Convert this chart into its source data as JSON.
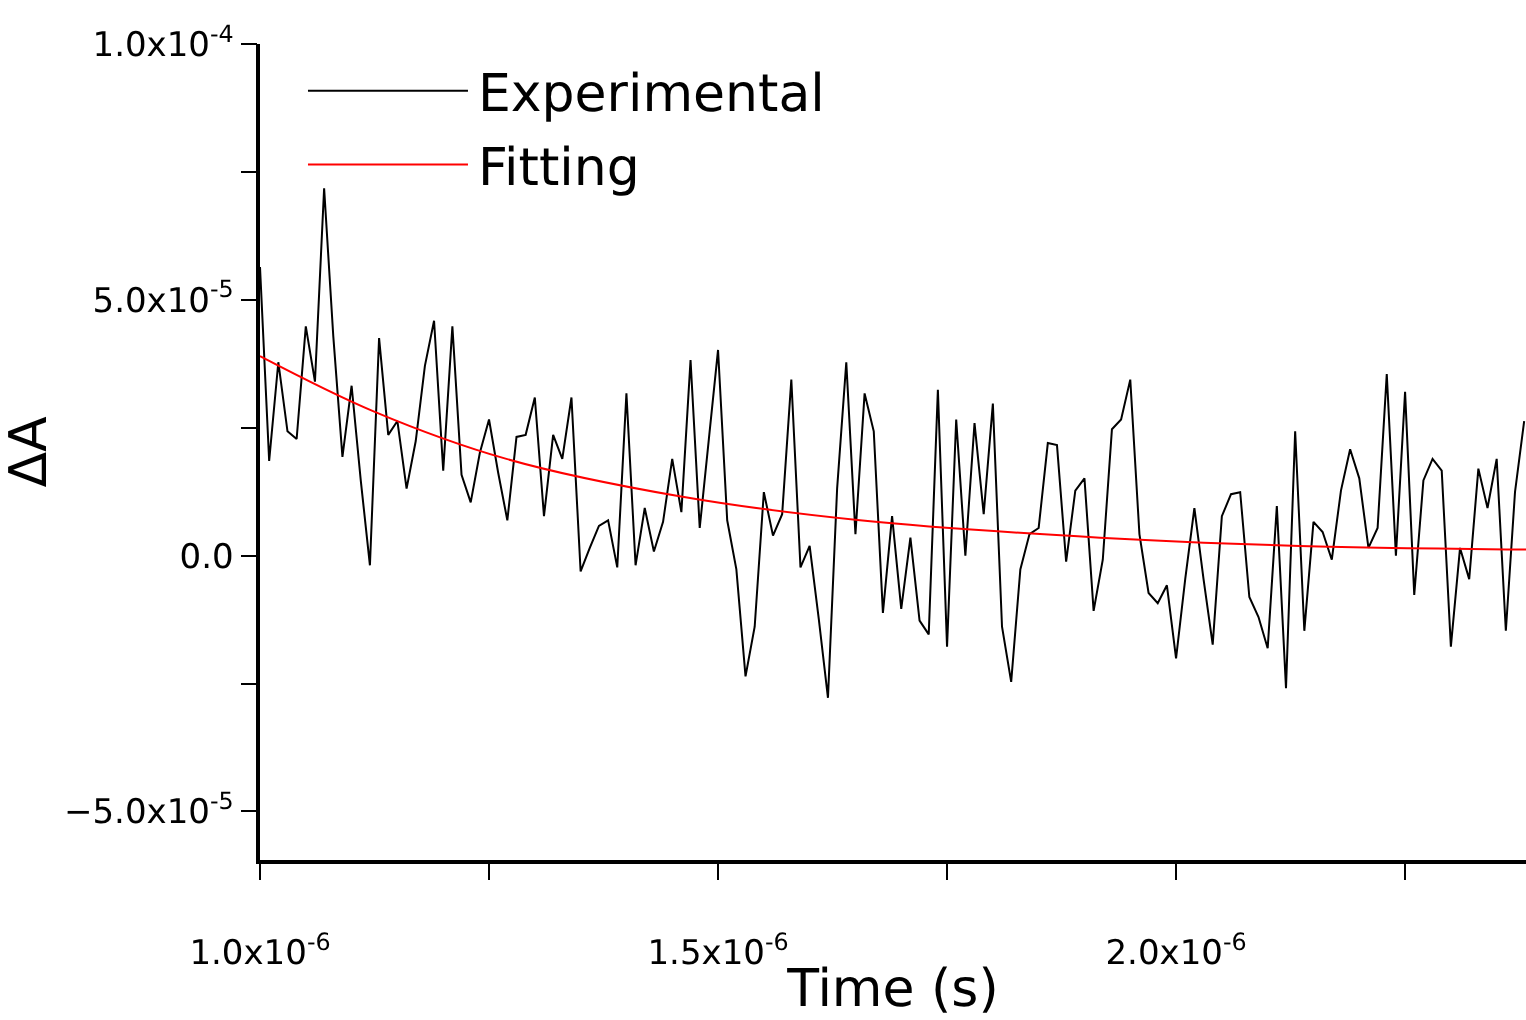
{
  "chart_data": {
    "type": "line",
    "xlabel": "Time (s)",
    "ylabel": "ΔA",
    "xlim": [
      1e-06,
      2.382e-06
    ],
    "ylim": [
      -5.95e-05,
      0.0001
    ],
    "xticks": [
      {
        "value": 1e-06,
        "label": "1.0x10$^{-6}$"
      },
      {
        "value": 1.25e-06,
        "label": null
      },
      {
        "value": 1.5e-06,
        "label": "1.5x10$^{-6}$"
      },
      {
        "value": 1.75e-06,
        "label": null
      },
      {
        "value": 2e-06,
        "label": "2.0x10$^{-6}$"
      },
      {
        "value": 2.25e-06,
        "label": null
      }
    ],
    "yticks": [
      {
        "value": -5e-05,
        "label": "−5.0x10$^{-5}$"
      },
      {
        "value": -2.5e-05,
        "label": null
      },
      {
        "value": 0,
        "label": "0.0"
      },
      {
        "value": 2.5e-05,
        "label": null
      },
      {
        "value": 5e-05,
        "label": "5.0x10$^{-5}$"
      },
      {
        "value": 7.5e-05,
        "label": null
      },
      {
        "value": 0.0001,
        "label": "1.0x10$^{-4}$"
      }
    ],
    "legend": "top left",
    "marker": "none",
    "line_style": "solid",
    "series": [
      {
        "name": "Experimental",
        "color": "#000000",
        "x": [
          1e-06,
          1.01e-06,
          1.02e-06,
          1.03e-06,
          1.04e-06,
          1.05e-06,
          1.06e-06,
          1.07e-06,
          1.08e-06,
          1.09e-06,
          1.1e-06,
          1.11e-06,
          1.12e-06,
          1.13e-06,
          1.14e-06,
          1.15e-06,
          1.16e-06,
          1.17e-06,
          1.18e-06,
          1.19e-06,
          1.2e-06,
          1.21e-06,
          1.22e-06,
          1.23e-06,
          1.24e-06,
          1.25e-06,
          1.26e-06,
          1.27e-06,
          1.28e-06,
          1.29e-06,
          1.3e-06,
          1.31e-06,
          1.32e-06,
          1.33e-06,
          1.34e-06,
          1.35e-06,
          1.36e-06,
          1.37e-06,
          1.38e-06,
          1.39e-06,
          1.4e-06,
          1.41e-06,
          1.42e-06,
          1.43e-06,
          1.44e-06,
          1.45e-06,
          1.46e-06,
          1.47e-06,
          1.48e-06,
          1.49e-06,
          1.5e-06,
          1.51e-06,
          1.52e-06,
          1.53e-06,
          1.54e-06,
          1.55e-06,
          1.56e-06,
          1.57e-06,
          1.58e-06,
          1.59e-06,
          1.6e-06,
          1.61e-06,
          1.62e-06,
          1.63e-06,
          1.64e-06,
          1.65e-06,
          1.66e-06,
          1.67e-06,
          1.68e-06,
          1.69e-06,
          1.7e-06,
          1.71e-06,
          1.72e-06,
          1.73e-06,
          1.74e-06,
          1.75e-06,
          1.76e-06,
          1.77e-06,
          1.78e-06,
          1.79e-06,
          1.8e-06,
          1.81e-06,
          1.82e-06,
          1.83e-06,
          1.84e-06,
          1.85e-06,
          1.86e-06,
          1.87e-06,
          1.88e-06,
          1.89e-06,
          1.9e-06,
          1.91e-06,
          1.92e-06,
          1.93e-06,
          1.94e-06,
          1.95e-06,
          1.96e-06,
          1.97e-06,
          1.98e-06,
          1.99e-06,
          2e-06,
          2.01e-06,
          2.02e-06,
          2.03e-06,
          2.04e-06,
          2.05e-06,
          2.06e-06,
          2.07e-06,
          2.08e-06,
          2.09e-06,
          2.1e-06,
          2.11e-06,
          2.12e-06,
          2.13e-06,
          2.14e-06,
          2.15e-06,
          2.16e-06,
          2.17e-06,
          2.18e-06,
          2.19e-06,
          2.2e-06,
          2.21e-06,
          2.22e-06,
          2.23e-06,
          2.24e-06,
          2.25e-06,
          2.26e-06,
          2.27e-06,
          2.28e-06,
          2.29e-06,
          2.3e-06,
          2.31e-06,
          2.32e-06,
          2.33e-06,
          2.34e-06,
          2.35e-06,
          2.36e-06,
          2.37e-06,
          2.38e-06
        ],
        "values": [
          5.64e-05,
          1.85e-05,
          3.78e-05,
          2.43e-05,
          2.28e-05,
          4.48e-05,
          3.4e-05,
          7.18e-05,
          4.29e-05,
          1.93e-05,
          3.32e-05,
          1.47e-05,
          -1.9e-06,
          4.25e-05,
          2.36e-05,
          2.63e-05,
          1.31e-05,
          2.24e-05,
          3.71e-05,
          4.59e-05,
          1.66e-05,
          4.48e-05,
          1.58e-05,
          1.04e-05,
          2.01e-05,
          2.66e-05,
          1.62e-05,
          6.9e-06,
          2.32e-05,
          2.36e-05,
          3.09e-05,
          7.7e-06,
          2.36e-05,
          1.89e-05,
          3.09e-05,
          -3.1e-06,
          1.5e-06,
          5.8e-06,
          6.9e-06,
          -2.3e-06,
          3.17e-05,
          -1.9e-06,
          9.3e-06,
          8e-07,
          6.6e-06,
          1.89e-05,
          8.5e-06,
          3.82e-05,
          5.4e-06,
          2.28e-05,
          4.02e-05,
          6.9e-06,
          -2.7e-06,
          -2.36e-05,
          -1.39e-05,
          1.24e-05,
          3.9e-06,
          8.1e-06,
          3.44e-05,
          -2.3e-06,
          1.9e-06,
          -1.24e-05,
          -2.78e-05,
          1.31e-05,
          3.78e-05,
          4.2e-06,
          3.17e-05,
          2.43e-05,
          -1.12e-05,
          7.7e-06,
          -1.04e-05,
          3.5e-06,
          -1.27e-05,
          -1.54e-05,
          3.24e-05,
          -1.78e-05,
          2.66e-05,
          0.0,
          2.59e-05,
          8.1e-06,
          2.97e-05,
          -1.39e-05,
          -2.47e-05,
          -2.7e-06,
          4.2e-06,
          5.4e-06,
          2.2e-05,
          2.16e-05,
          -1.2e-06,
          1.27e-05,
          1.51e-05,
          -1.08e-05,
          -8e-07,
          2.47e-05,
          2.66e-05,
          3.44e-05,
          4.2e-06,
          -7.3e-06,
          -9.3e-06,
          -5.8e-06,
          -2.01e-05,
          -4.6e-06,
          9.3e-06,
          -4.6e-06,
          -1.74e-05,
          7.7e-06,
          1.2e-05,
          1.24e-05,
          -8.1e-06,
          -1.2e-05,
          -1.81e-05,
          9.7e-06,
          -2.59e-05,
          2.43e-05,
          -1.47e-05,
          6.6e-06,
          4.6e-06,
          -8e-07,
          1.27e-05,
          2.08e-05,
          1.51e-05,
          1.5e-06,
          5.4e-06,
          3.55e-05,
          0.0,
          3.2e-05,
          -7.7e-06,
          1.47e-05,
          1.89e-05,
          1.66e-05,
          -1.78e-05,
          1.5e-06,
          -4.6e-06,
          1.7e-05,
          9.3e-06,
          1.89e-05,
          -1.47e-05,
          1.24e-05,
          2.63e-05
        ]
      },
      {
        "name": "Fitting",
        "color": "#ff0000",
        "x": [
          1e-06,
          1.124e-06,
          1.269e-06,
          1.458e-06,
          1.655e-06,
          1.917e-06,
          2.135e-06,
          2.382e-06
        ],
        "values": [
          3.9e-05,
          2.82e-05,
          1.89e-05,
          1.16e-05,
          6.9e-06,
          3.5e-06,
          1.9e-06,
          1.2e-06
        ]
      }
    ]
  }
}
